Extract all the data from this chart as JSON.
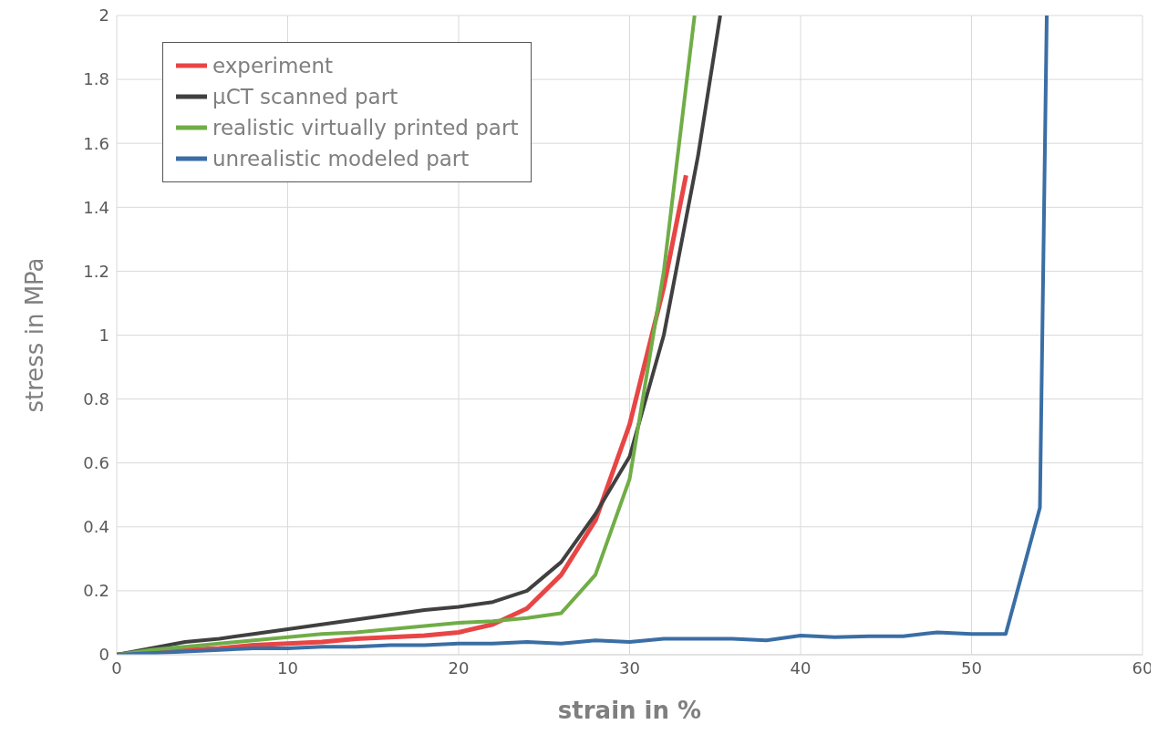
{
  "chart_data": {
    "type": "line",
    "xlabel": "strain in %",
    "ylabel": "stress in MPa",
    "xlim": [
      0,
      60
    ],
    "xticks": [
      0,
      10,
      20,
      30,
      40,
      50,
      60
    ],
    "ylim": [
      0,
      2
    ],
    "yticks": [
      0,
      0.2,
      0.4,
      0.6,
      0.8,
      1,
      1.2,
      1.4,
      1.6,
      1.8,
      2
    ],
    "grid": true,
    "legend": "top left",
    "marker": "none",
    "line_style": "solid",
    "series": [
      {
        "name": "experiment",
        "color": "#e84545",
        "x": [
          0,
          2,
          4,
          6,
          8,
          10,
          12,
          14,
          16,
          18,
          20,
          22,
          24,
          26,
          28,
          30,
          32,
          33.3
        ],
        "values": [
          0,
          0.01,
          0.015,
          0.02,
          0.03,
          0.035,
          0.04,
          0.05,
          0.055,
          0.06,
          0.07,
          0.095,
          0.145,
          0.25,
          0.42,
          0.72,
          1.15,
          1.5
        ]
      },
      {
        "name": "µCT scanned part",
        "color": "#404040",
        "x": [
          0,
          2,
          4,
          6,
          8,
          10,
          12,
          14,
          16,
          18,
          20,
          22,
          24,
          26,
          28,
          30,
          32,
          34,
          35.3
        ],
        "values": [
          0,
          0.02,
          0.04,
          0.05,
          0.065,
          0.08,
          0.095,
          0.11,
          0.125,
          0.14,
          0.15,
          0.165,
          0.2,
          0.29,
          0.44,
          0.62,
          1,
          1.56,
          2
        ]
      },
      {
        "name": "realistic virtually printed part",
        "color": "#70ad47",
        "x": [
          0,
          2,
          4,
          6,
          8,
          10,
          12,
          14,
          16,
          18,
          20,
          22,
          24,
          26,
          28,
          30,
          32,
          33.8
        ],
        "values": [
          0,
          0.015,
          0.025,
          0.035,
          0.045,
          0.055,
          0.065,
          0.07,
          0.08,
          0.09,
          0.1,
          0.105,
          0.115,
          0.13,
          0.25,
          0.55,
          1.2,
          2
        ]
      },
      {
        "name": "unrealistic modeled part",
        "color": "#3a6ea5",
        "x": [
          0,
          2,
          4,
          6,
          8,
          10,
          12,
          14,
          16,
          18,
          20,
          22,
          24,
          26,
          28,
          30,
          32,
          34,
          36,
          38,
          40,
          42,
          44,
          46,
          48,
          50,
          52,
          54,
          54.4
        ],
        "values": [
          0,
          0.005,
          0.01,
          0.015,
          0.02,
          0.02,
          0.025,
          0.025,
          0.03,
          0.03,
          0.035,
          0.035,
          0.04,
          0.035,
          0.045,
          0.04,
          0.05,
          0.05,
          0.05,
          0.045,
          0.06,
          0.055,
          0.058,
          0.058,
          0.07,
          0.065,
          0.065,
          0.46,
          2
        ]
      }
    ]
  }
}
